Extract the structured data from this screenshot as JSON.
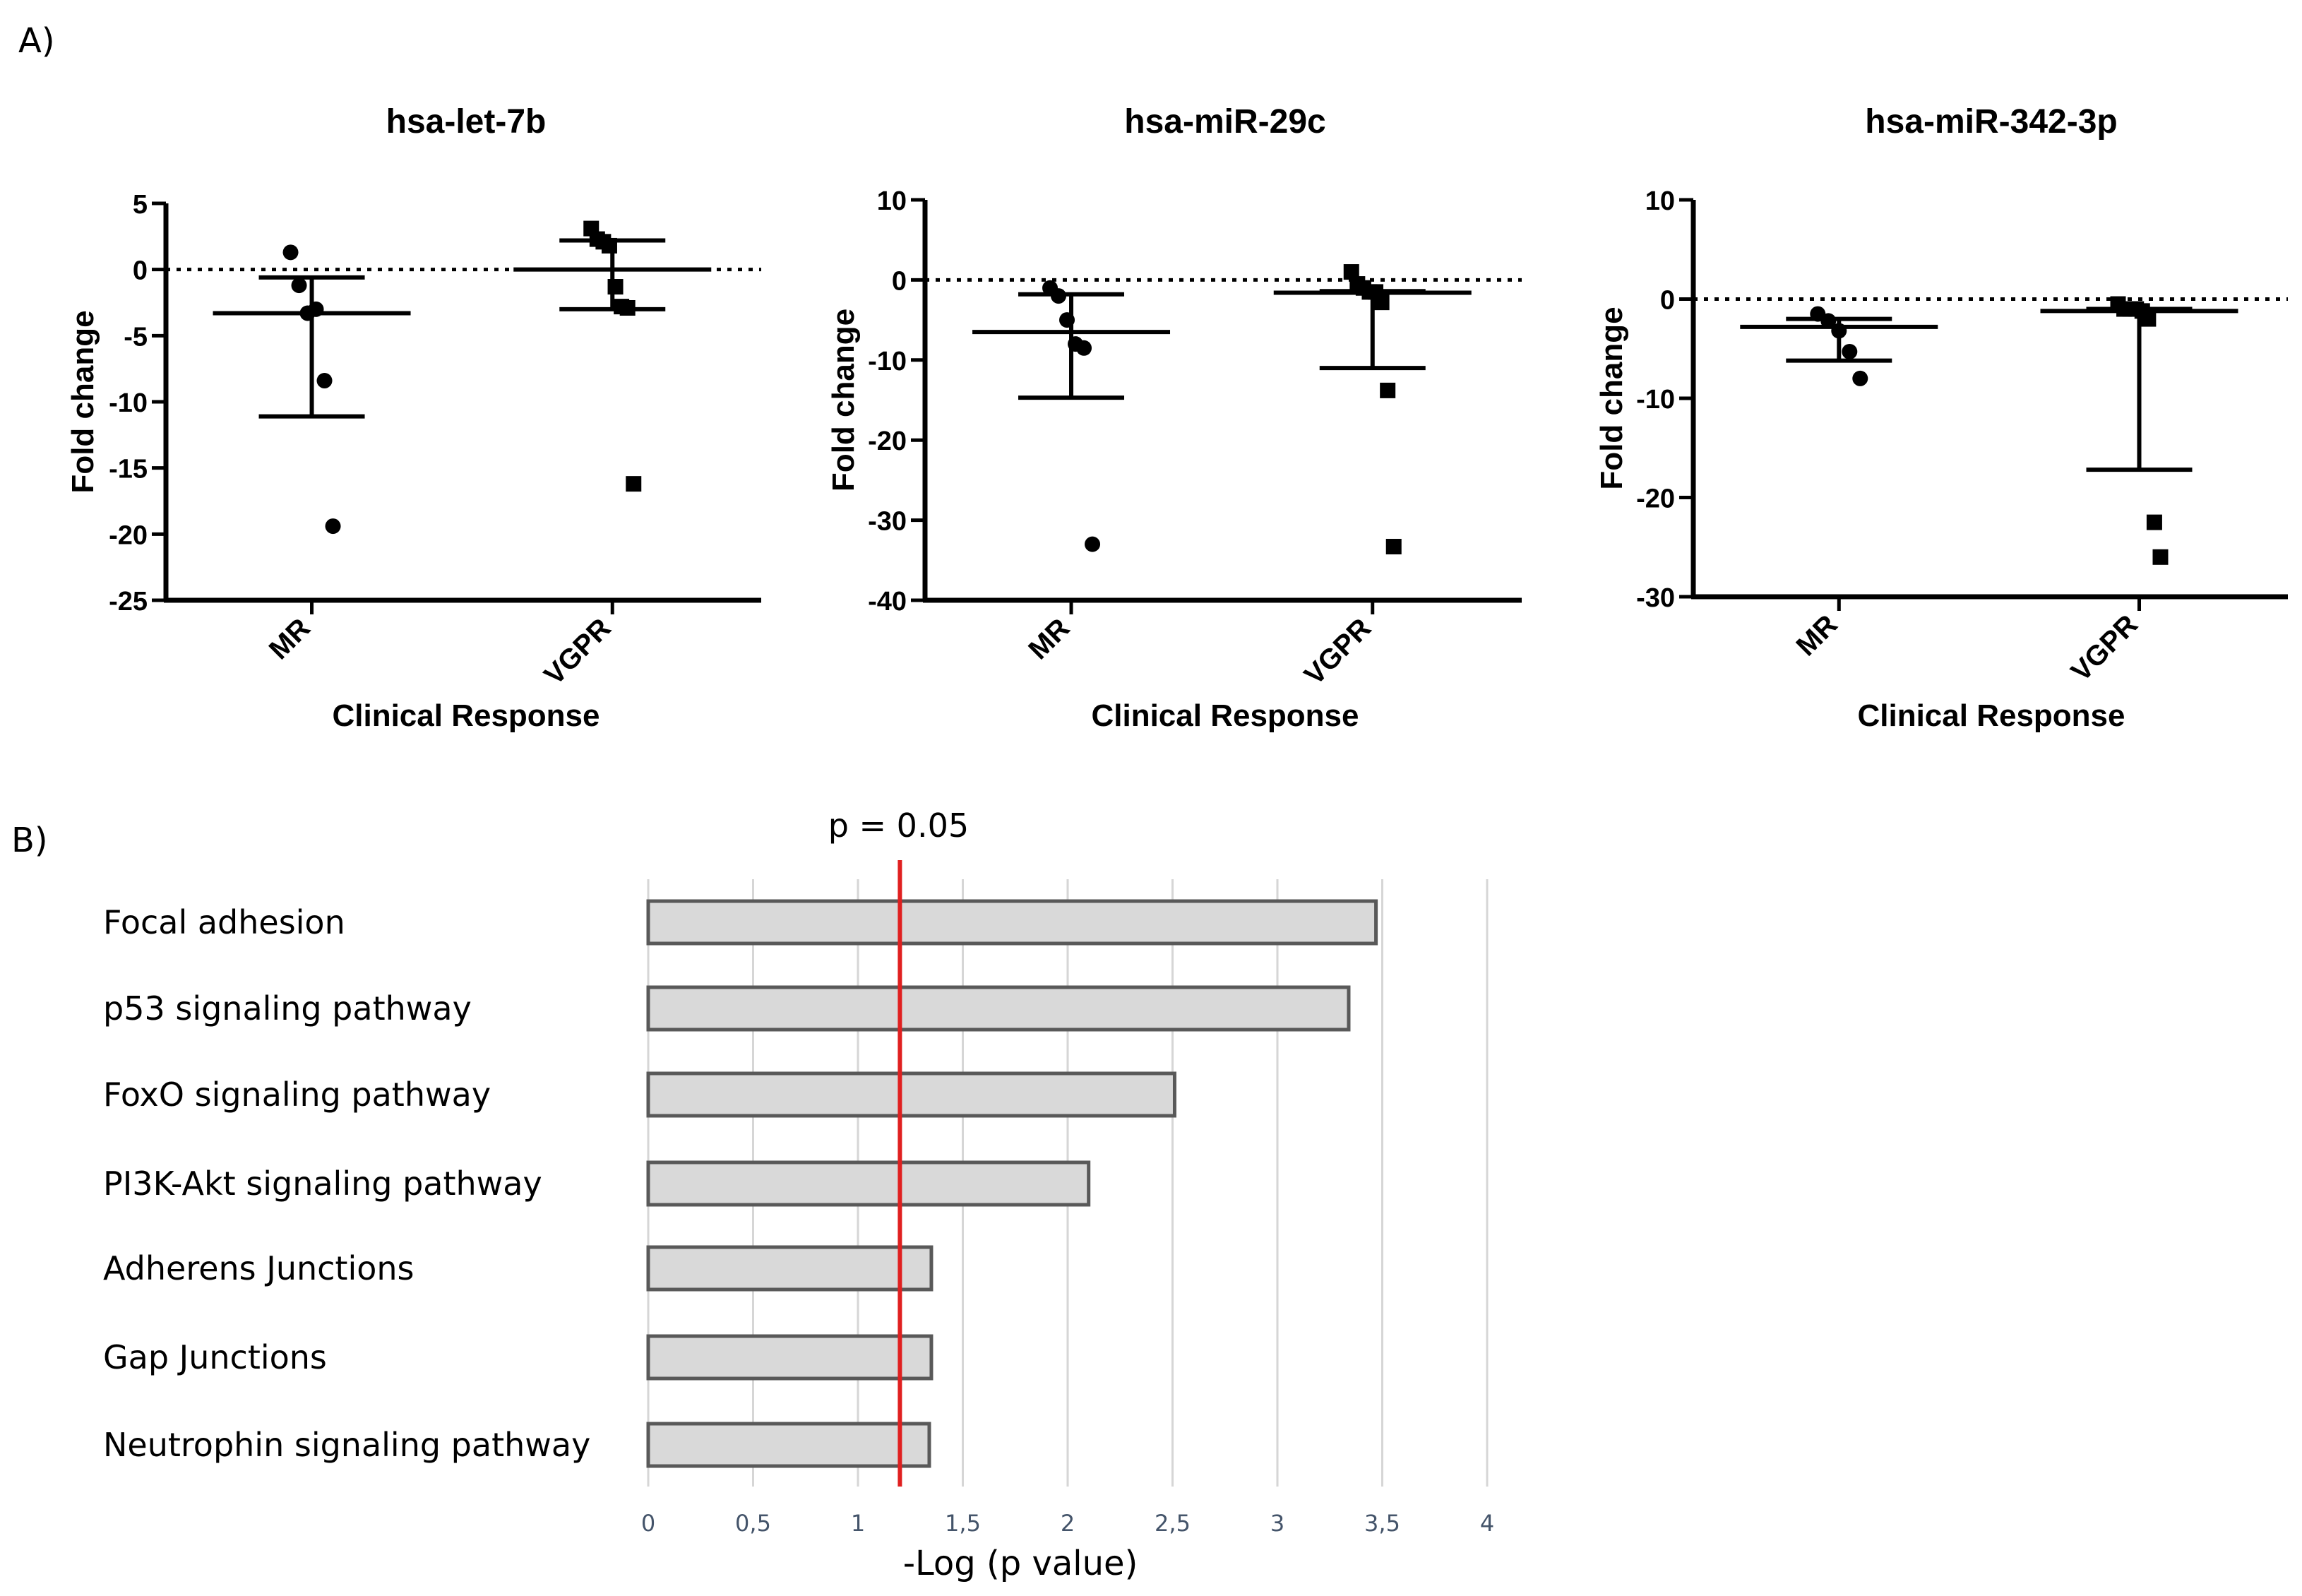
{
  "panels": {
    "a_label": "A)",
    "b_label": "B)"
  },
  "chart_data": [
    {
      "type": "scatter",
      "title": "hsa-let-7b",
      "xlabel": "Clinical Response",
      "ylabel": "Fold change",
      "ylim": [
        -25,
        5
      ],
      "yticks": [
        5,
        0,
        -5,
        -10,
        -15,
        -20,
        -25
      ],
      "reference_line": 0,
      "categories": [
        "MR",
        "VGPR"
      ],
      "series": [
        {
          "name": "MR",
          "marker": "circle",
          "values": [
            1.3,
            -1.2,
            -3.3,
            -3.0,
            -8.4,
            -19.4
          ],
          "mean": -3.3,
          "err_low": -11.1,
          "err_high": -0.6
        },
        {
          "name": "VGPR",
          "marker": "square",
          "values": [
            3.1,
            2.3,
            2.1,
            1.8,
            -1.3,
            -2.8,
            -2.9,
            -16.2
          ],
          "mean": 0.0,
          "err_low": -3.0,
          "err_high": 2.2
        }
      ]
    },
    {
      "type": "scatter",
      "title": "hsa-miR-29c",
      "xlabel": "Clinical Response",
      "ylabel": "Fold change",
      "ylim": [
        -40,
        10
      ],
      "yticks": [
        10,
        0,
        -10,
        -20,
        -30,
        -40
      ],
      "reference_line": 0,
      "categories": [
        "MR",
        "VGPR"
      ],
      "series": [
        {
          "name": "MR",
          "marker": "circle",
          "values": [
            -1.0,
            -2.0,
            -5.0,
            -8.0,
            -8.5,
            -33.0
          ],
          "mean": -6.5,
          "err_low": -14.7,
          "err_high": -1.8
        },
        {
          "name": "VGPR",
          "marker": "square",
          "values": [
            1.0,
            -0.5,
            -1.0,
            -1.5,
            -1.5,
            -2.8,
            -13.8,
            -33.3
          ],
          "mean": -1.6,
          "err_low": -11.0,
          "err_high": -1.4
        }
      ]
    },
    {
      "type": "scatter",
      "title": "hsa-miR-342-3p",
      "xlabel": "Clinical Response",
      "ylabel": "Fold change",
      "ylim": [
        -30,
        10
      ],
      "yticks": [
        10,
        0,
        -10,
        -20,
        -30
      ],
      "reference_line": 0,
      "categories": [
        "MR",
        "VGPR"
      ],
      "series": [
        {
          "name": "MR",
          "marker": "circle",
          "values": [
            -1.5,
            -2.2,
            -3.2,
            -5.3,
            -8.0
          ],
          "mean": -2.8,
          "err_low": -6.2,
          "err_high": -2.0
        },
        {
          "name": "VGPR",
          "marker": "square",
          "values": [
            -0.5,
            -1.0,
            -1.0,
            -1.0,
            -1.2,
            -2.0,
            -22.5,
            -26.0
          ],
          "mean": -1.2,
          "err_low": -17.2,
          "err_high": -1.0
        }
      ]
    },
    {
      "type": "bar",
      "orientation": "horizontal",
      "categories": [
        "Focal adhesion",
        "p53 signaling pathway",
        "FoxO signaling pathway",
        "PI3K-Akt signaling pathway",
        "Adherens Junctions",
        "Gap Junctions",
        "Neutrophin signaling pathway"
      ],
      "values": [
        3.47,
        3.34,
        2.51,
        2.1,
        1.35,
        1.35,
        1.34
      ],
      "xlabel": "-Log  (p value)",
      "xlim": [
        0,
        4
      ],
      "xticks": [
        "0",
        "0,5",
        "1",
        "1,5",
        "2",
        "2,5",
        "3",
        "3,5",
        "4"
      ],
      "threshold": {
        "label": "p = 0.05",
        "value": 1.2,
        "color": "#e02020"
      },
      "bar_color": "#d9d9d9"
    }
  ]
}
